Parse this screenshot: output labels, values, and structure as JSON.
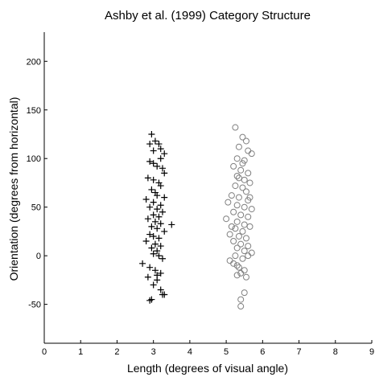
{
  "chart_data": {
    "type": "scatter",
    "title": "Ashby et al. (1999) Category Structure",
    "x_label": "Length (degrees of visual angle)",
    "y_label": "Orientation (degrees from horizontal)",
    "xlim": [
      0,
      9
    ],
    "xticks": [
      0,
      1,
      2,
      3,
      4,
      5,
      6,
      7,
      8,
      9
    ],
    "ylim": [
      -90,
      230
    ],
    "yticks": [
      -50,
      0,
      50,
      100,
      150,
      200
    ],
    "series": [
      {
        "color": "#000000",
        "marker": "plus",
        "x": [
          2.95,
          3.05,
          3.15,
          3.2,
          2.9,
          3.0,
          3.1,
          3.25,
          3.3,
          2.85,
          3.0,
          3.15,
          3.2,
          2.95,
          3.05,
          3.1,
          3.3,
          2.8,
          3.0,
          3.2,
          2.9,
          3.1,
          3.25,
          3.0,
          3.15,
          2.85,
          3.05,
          3.2,
          3.5,
          2.95,
          3.1,
          3.3,
          2.9,
          3.0,
          3.15,
          2.8,
          3.05,
          3.2,
          2.95,
          3.1,
          3.0,
          3.15,
          3.25,
          2.7,
          2.9,
          3.05,
          3.2,
          2.85,
          3.1,
          3.0,
          3.2,
          3.25,
          3.3,
          2.95,
          2.9,
          3.1,
          3.3,
          2.9,
          3.0,
          3.2
        ],
        "values": [
          125,
          118,
          115,
          110,
          97,
          95,
          92,
          90,
          85,
          80,
          78,
          75,
          72,
          68,
          65,
          62,
          60,
          58,
          55,
          52,
          50,
          48,
          45,
          42,
          40,
          38,
          35,
          33,
          32,
          30,
          28,
          25,
          22,
          20,
          18,
          15,
          12,
          10,
          8,
          5,
          2,
          0,
          -3,
          -8,
          -12,
          -15,
          -18,
          -22,
          -25,
          -30,
          -35,
          -40,
          -40,
          -45,
          -46,
          -20,
          105,
          115,
          108,
          100
        ]
      },
      {
        "color": "#808080",
        "marker": "circle",
        "x": [
          5.25,
          5.45,
          5.55,
          5.35,
          5.6,
          5.7,
          5.3,
          5.5,
          5.2,
          5.4,
          5.6,
          5.3,
          5.5,
          5.65,
          5.25,
          5.45,
          5.55,
          5.15,
          5.35,
          5.6,
          5.05,
          5.3,
          5.5,
          5.7,
          5.2,
          5.4,
          5.6,
          5.0,
          5.3,
          5.5,
          5.65,
          5.25,
          5.45,
          5.1,
          5.35,
          5.55,
          5.2,
          5.4,
          5.6,
          5.3,
          5.5,
          5.7,
          5.25,
          5.45,
          5.2,
          5.35,
          5.5,
          5.4,
          5.3,
          5.55,
          5.5,
          5.4,
          5.4,
          5.1,
          5.6,
          5.45,
          5.35,
          5.15,
          5.65,
          5.3
        ],
        "values": [
          132,
          122,
          118,
          112,
          108,
          105,
          100,
          98,
          92,
          88,
          85,
          82,
          78,
          75,
          72,
          70,
          66,
          62,
          60,
          57,
          55,
          52,
          50,
          48,
          45,
          42,
          40,
          38,
          35,
          32,
          30,
          28,
          25,
          22,
          20,
          18,
          15,
          12,
          10,
          8,
          5,
          3,
          0,
          -3,
          -8,
          -12,
          -15,
          -18,
          -20,
          -22,
          -38,
          -45,
          -52,
          -5,
          0,
          95,
          80,
          30,
          60,
          -10
        ]
      }
    ]
  }
}
